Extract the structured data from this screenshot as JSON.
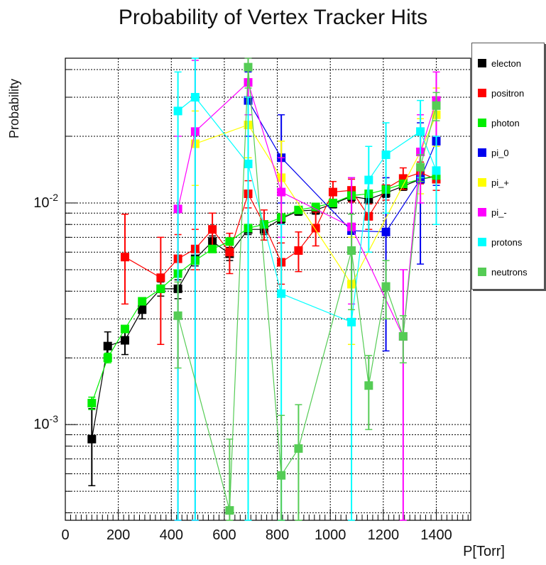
{
  "title": "Probability of Vertex Tracker Hits",
  "chart_data": {
    "type": "scatter",
    "title": "Probability of Vertex Tracker Hits",
    "xlabel": "P[Torr]",
    "ylabel": "Probability",
    "xlim": [
      0,
      1530
    ],
    "ylim": [
      0.00037,
      0.045
    ],
    "yscale": "log",
    "grid": true,
    "legend_position": "top-right",
    "x_ticks": [
      "0",
      "200",
      "400",
      "600",
      "800",
      "1000",
      "1200",
      "1400"
    ],
    "y_ticks": [
      {
        "base": "10",
        "exp": "-3",
        "value": 0.001
      },
      {
        "base": "10",
        "exp": "-2",
        "value": 0.01
      }
    ],
    "series": [
      {
        "name": "electon",
        "color": "#000000",
        "points": [
          {
            "x": 100,
            "y": 0.00086,
            "lo": 0.00053,
            "hi": 0.00118
          },
          {
            "x": 160,
            "y": 0.00226,
            "lo": 0.00195,
            "hi": 0.00262
          },
          {
            "x": 225,
            "y": 0.0024,
            "lo": 0.00207,
            "hi": 0.00275
          },
          {
            "x": 290,
            "y": 0.0033,
            "lo": 0.003,
            "hi": 0.0036
          },
          {
            "x": 360,
            "y": 0.0041,
            "lo": 0.0038,
            "hi": 0.0044
          },
          {
            "x": 425,
            "y": 0.0041,
            "lo": 0.0037,
            "hi": 0.0045
          },
          {
            "x": 490,
            "y": 0.0056,
            "lo": 0.0052,
            "hi": 0.006
          },
          {
            "x": 555,
            "y": 0.0067,
            "lo": 0.0063,
            "hi": 0.0071
          },
          {
            "x": 620,
            "y": 0.0059,
            "lo": 0.0055,
            "hi": 0.0063
          },
          {
            "x": 690,
            "y": 0.0076,
            "lo": 0.0072,
            "hi": 0.008
          },
          {
            "x": 750,
            "y": 0.0076,
            "lo": 0.0072,
            "hi": 0.008
          },
          {
            "x": 815,
            "y": 0.0085,
            "lo": 0.0081,
            "hi": 0.0089
          },
          {
            "x": 880,
            "y": 0.0092,
            "lo": 0.0088,
            "hi": 0.0096
          },
          {
            "x": 945,
            "y": 0.0093,
            "lo": 0.0089,
            "hi": 0.0097
          },
          {
            "x": 1010,
            "y": 0.0099,
            "lo": 0.0095,
            "hi": 0.0103
          },
          {
            "x": 1080,
            "y": 0.0107,
            "lo": 0.0102,
            "hi": 0.0112
          },
          {
            "x": 1145,
            "y": 0.0104,
            "lo": 0.0099,
            "hi": 0.0109
          },
          {
            "x": 1210,
            "y": 0.0111,
            "lo": 0.0106,
            "hi": 0.0116
          },
          {
            "x": 1275,
            "y": 0.0119,
            "lo": 0.0114,
            "hi": 0.0124
          },
          {
            "x": 1340,
            "y": 0.0128,
            "lo": 0.0123,
            "hi": 0.0133
          },
          {
            "x": 1400,
            "y": 0.0132,
            "lo": 0.0127,
            "hi": 0.0137
          }
        ]
      },
      {
        "name": "positron",
        "color": "#ff0000",
        "points": [
          {
            "x": 225,
            "y": 0.0057,
            "lo": 0.0035,
            "hi": 0.0089
          },
          {
            "x": 360,
            "y": 0.0046,
            "lo": 0.0023,
            "hi": 0.007
          },
          {
            "x": 425,
            "y": 0.0056,
            "lo": 0.0044,
            "hi": 0.0072
          },
          {
            "x": 490,
            "y": 0.0062,
            "lo": 0.005,
            "hi": 0.0076
          },
          {
            "x": 555,
            "y": 0.0076,
            "lo": 0.0062,
            "hi": 0.009
          },
          {
            "x": 620,
            "y": 0.006,
            "lo": 0.0048,
            "hi": 0.0073
          },
          {
            "x": 690,
            "y": 0.011,
            "lo": 0.0095,
            "hi": 0.0126
          },
          {
            "x": 750,
            "y": 0.008,
            "lo": 0.0068,
            "hi": 0.0093
          },
          {
            "x": 815,
            "y": 0.0054,
            "lo": 0.0043,
            "hi": 0.0066
          },
          {
            "x": 880,
            "y": 0.0061,
            "lo": 0.0049,
            "hi": 0.0074
          },
          {
            "x": 945,
            "y": 0.0077,
            "lo": 0.0064,
            "hi": 0.0091
          },
          {
            "x": 1010,
            "y": 0.0112,
            "lo": 0.0099,
            "hi": 0.0125
          },
          {
            "x": 1080,
            "y": 0.0114,
            "lo": 0.0101,
            "hi": 0.0128
          },
          {
            "x": 1145,
            "y": 0.0087,
            "lo": 0.0076,
            "hi": 0.0099
          },
          {
            "x": 1210,
            "y": 0.0116,
            "lo": 0.0103,
            "hi": 0.013
          },
          {
            "x": 1275,
            "y": 0.0129,
            "lo": 0.0115,
            "hi": 0.0144
          },
          {
            "x": 1340,
            "y": 0.0137,
            "lo": 0.0122,
            "hi": 0.0153
          },
          {
            "x": 1400,
            "y": 0.0128,
            "lo": 0.0114,
            "hi": 0.0143
          }
        ]
      },
      {
        "name": "photon",
        "color": "#00ee00",
        "points": [
          {
            "x": 100,
            "y": 0.00125,
            "lo": 0.00117,
            "hi": 0.00133
          },
          {
            "x": 160,
            "y": 0.002,
            "lo": 0.0019,
            "hi": 0.0021
          },
          {
            "x": 225,
            "y": 0.0027,
            "lo": 0.0026,
            "hi": 0.0028
          },
          {
            "x": 290,
            "y": 0.0036,
            "lo": 0.0035,
            "hi": 0.0037
          },
          {
            "x": 360,
            "y": 0.0041,
            "lo": 0.004,
            "hi": 0.0042
          },
          {
            "x": 425,
            "y": 0.0048,
            "lo": 0.0047,
            "hi": 0.0049
          },
          {
            "x": 490,
            "y": 0.0055,
            "lo": 0.0054,
            "hi": 0.0056
          },
          {
            "x": 555,
            "y": 0.0062,
            "lo": 0.0061,
            "hi": 0.0063
          },
          {
            "x": 620,
            "y": 0.0067,
            "lo": 0.0066,
            "hi": 0.0068
          },
          {
            "x": 690,
            "y": 0.0077,
            "lo": 0.0076,
            "hi": 0.0078
          },
          {
            "x": 750,
            "y": 0.008,
            "lo": 0.0079,
            "hi": 0.0081
          },
          {
            "x": 815,
            "y": 0.0086,
            "lo": 0.0085,
            "hi": 0.0087
          },
          {
            "x": 880,
            "y": 0.0093,
            "lo": 0.0092,
            "hi": 0.0094
          },
          {
            "x": 945,
            "y": 0.0096,
            "lo": 0.0095,
            "hi": 0.0097
          },
          {
            "x": 1010,
            "y": 0.01,
            "lo": 0.0099,
            "hi": 0.0101
          },
          {
            "x": 1080,
            "y": 0.0108,
            "lo": 0.0107,
            "hi": 0.0109
          },
          {
            "x": 1145,
            "y": 0.011,
            "lo": 0.0109,
            "hi": 0.0111
          },
          {
            "x": 1210,
            "y": 0.0115,
            "lo": 0.0114,
            "hi": 0.0116
          },
          {
            "x": 1275,
            "y": 0.0122,
            "lo": 0.0121,
            "hi": 0.0123
          },
          {
            "x": 1340,
            "y": 0.0128,
            "lo": 0.0127,
            "hi": 0.0129
          },
          {
            "x": 1400,
            "y": 0.0133,
            "lo": 0.0132,
            "hi": 0.0134
          }
        ]
      },
      {
        "name": "pi_0",
        "color": "#0000ee",
        "points": [
          {
            "x": 690,
            "y": 0.029,
            "lo": 0.02,
            "hi": 0.039
          },
          {
            "x": 815,
            "y": 0.016,
            "lo": 0.01,
            "hi": 0.025
          },
          {
            "x": 1080,
            "y": 0.0075,
            "lo": 0.0023,
            "hi": 0.013
          },
          {
            "x": 1210,
            "y": 0.0074,
            "lo": 0.00215,
            "hi": 0.013
          },
          {
            "x": 1340,
            "y": 0.0128,
            "lo": 0.0053,
            "hi": 0.023
          },
          {
            "x": 1400,
            "y": 0.019,
            "lo": 0.012,
            "hi": 0.027
          }
        ]
      },
      {
        "name": "pi_+",
        "color": "#ffff00",
        "points": [
          {
            "x": 490,
            "y": 0.0185,
            "lo": 0.012,
            "hi": 0.026
          },
          {
            "x": 690,
            "y": 0.0225,
            "lo": 0.016,
            "hi": 0.03
          },
          {
            "x": 815,
            "y": 0.013,
            "lo": 0.008,
            "hi": 0.019
          },
          {
            "x": 1080,
            "y": 0.0043,
            "lo": 0.0023,
            "hi": 0.007
          },
          {
            "x": 1340,
            "y": 0.017,
            "lo": 0.011,
            "hi": 0.024
          },
          {
            "x": 1400,
            "y": 0.025,
            "lo": 0.018,
            "hi": 0.033
          }
        ]
      },
      {
        "name": "pi_-",
        "color": "#ff00ff",
        "points": [
          {
            "x": 425,
            "y": 0.0094,
            "lo": 0.00037,
            "hi": 0.02
          },
          {
            "x": 490,
            "y": 0.021,
            "lo": 0.00037,
            "hi": 0.044
          },
          {
            "x": 690,
            "y": 0.035,
            "lo": 0.025,
            "hi": 0.045
          },
          {
            "x": 815,
            "y": 0.0112,
            "lo": 0.007,
            "hi": 0.016
          },
          {
            "x": 1080,
            "y": 0.0078,
            "lo": 0.0035,
            "hi": 0.013
          },
          {
            "x": 1275,
            "y": 0.0025,
            "lo": 0.00037,
            "hi": 0.005
          },
          {
            "x": 1340,
            "y": 0.017,
            "lo": 0.01,
            "hi": 0.025
          },
          {
            "x": 1400,
            "y": 0.029,
            "lo": 0.02,
            "hi": 0.039
          }
        ]
      },
      {
        "name": "protons",
        "color": "#00ffff",
        "points": [
          {
            "x": 425,
            "y": 0.026,
            "lo": 0.00037,
            "hi": 0.039
          },
          {
            "x": 490,
            "y": 0.03,
            "lo": 0.00037,
            "hi": 0.045
          },
          {
            "x": 690,
            "y": 0.015,
            "lo": 0.00037,
            "hi": 0.03
          },
          {
            "x": 815,
            "y": 0.0039,
            "lo": 0.00037,
            "hi": 0.008
          },
          {
            "x": 1080,
            "y": 0.0029,
            "lo": 0.00037,
            "hi": 0.006
          },
          {
            "x": 1145,
            "y": 0.0127,
            "lo": 0.006,
            "hi": 0.018
          },
          {
            "x": 1210,
            "y": 0.0165,
            "lo": 0.009,
            "hi": 0.023
          },
          {
            "x": 1340,
            "y": 0.021,
            "lo": 0.013,
            "hi": 0.029
          },
          {
            "x": 1400,
            "y": 0.014,
            "lo": 0.008,
            "hi": 0.02
          }
        ]
      },
      {
        "name": "neutrons",
        "color": "#55cc55",
        "points": [
          {
            "x": 425,
            "y": 0.0031,
            "lo": 0.0018,
            "hi": 0.0044
          },
          {
            "x": 620,
            "y": 0.00041,
            "lo": 0.00037,
            "hi": 0.00086
          },
          {
            "x": 690,
            "y": 0.041,
            "lo": 0.033,
            "hi": 0.045
          },
          {
            "x": 815,
            "y": 0.00059,
            "lo": 0.00037,
            "hi": 0.0011
          },
          {
            "x": 880,
            "y": 0.00078,
            "lo": 0.00037,
            "hi": 0.00123
          },
          {
            "x": 1080,
            "y": 0.0061,
            "lo": 0.0033,
            "hi": 0.0089
          },
          {
            "x": 1145,
            "y": 0.0015,
            "lo": 0.00095,
            "hi": 0.00205
          },
          {
            "x": 1210,
            "y": 0.0042,
            "lo": 0.003,
            "hi": 0.0055
          },
          {
            "x": 1275,
            "y": 0.0025,
            "lo": 0.0019,
            "hi": 0.0031
          },
          {
            "x": 1340,
            "y": 0.0145,
            "lo": 0.0125,
            "hi": 0.0165
          },
          {
            "x": 1400,
            "y": 0.0275,
            "lo": 0.0235,
            "hi": 0.0315
          }
        ]
      }
    ]
  }
}
